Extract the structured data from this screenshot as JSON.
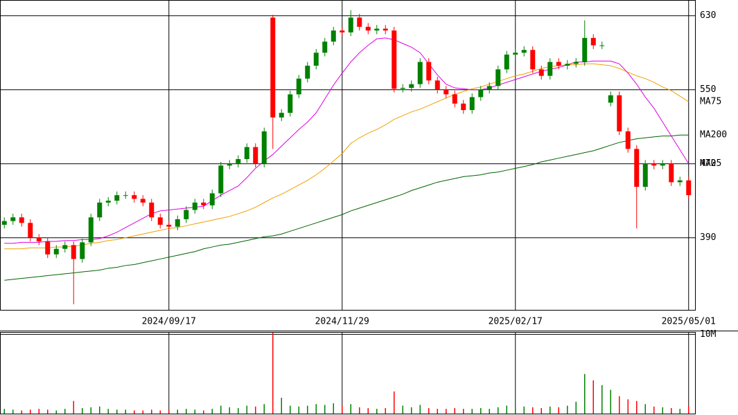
{
  "chart_data": {
    "type": "candlestick",
    "categories": [
      null,
      null,
      null,
      null,
      null,
      null,
      null,
      null,
      null,
      null,
      null,
      null,
      null,
      null,
      null,
      null,
      null,
      null,
      null,
      "2024/09/17",
      null,
      null,
      null,
      null,
      null,
      null,
      null,
      null,
      null,
      null,
      null,
      null,
      null,
      null,
      null,
      null,
      null,
      null,
      null,
      "2024/11/29",
      null,
      null,
      null,
      null,
      null,
      null,
      null,
      null,
      null,
      null,
      null,
      null,
      null,
      null,
      null,
      null,
      null,
      null,
      null,
      "2025/02/17",
      null,
      null,
      null,
      null,
      null,
      null,
      null,
      null,
      null,
      null,
      null,
      null,
      null,
      null,
      null,
      null,
      null,
      null,
      null,
      "2025/05/01"
    ],
    "open": [
      404,
      408,
      412,
      406,
      390,
      386,
      372,
      378,
      382,
      367,
      385,
      412,
      428,
      430,
      436,
      436,
      432,
      428,
      412,
      404,
      402,
      410,
      420,
      428,
      425,
      438,
      468,
      470,
      475,
      488,
      470,
      628,
      520,
      525,
      545,
      562,
      576,
      590,
      602,
      614,
      612,
      628,
      618,
      614,
      616,
      614,
      551,
      552,
      556,
      580,
      560,
      550,
      545,
      535,
      528,
      542,
      550,
      554,
      572,
      588,
      590,
      593,
      572,
      565,
      580,
      576,
      578,
      580,
      606,
      598,
      536,
      544,
      505,
      486,
      445,
      470,
      468,
      470,
      450,
      452
    ],
    "high": [
      412,
      416,
      416,
      410,
      394,
      390,
      382,
      386,
      386,
      389,
      416,
      432,
      434,
      440,
      440,
      440,
      436,
      432,
      416,
      408,
      414,
      424,
      432,
      432,
      442,
      472,
      474,
      479,
      492,
      492,
      509,
      631,
      529,
      549,
      566,
      580,
      594,
      606,
      618,
      618,
      636,
      632,
      622,
      620,
      620,
      618,
      556,
      560,
      584,
      584,
      564,
      554,
      549,
      539,
      546,
      554,
      558,
      576,
      592,
      594,
      597,
      597,
      576,
      584,
      584,
      582,
      584,
      625,
      610,
      602,
      548,
      548,
      509,
      490,
      474,
      474,
      474,
      474,
      456,
      456
    ],
    "low": [
      400,
      404,
      402,
      386,
      382,
      368,
      368,
      374,
      318,
      363,
      381,
      408,
      424,
      426,
      432,
      428,
      424,
      408,
      400,
      398,
      398,
      406,
      416,
      421,
      421,
      434,
      464,
      466,
      471,
      466,
      466,
      486,
      516,
      521,
      541,
      558,
      572,
      586,
      598,
      608,
      608,
      614,
      610,
      610,
      610,
      547,
      547,
      548,
      552,
      556,
      546,
      541,
      531,
      524,
      524,
      538,
      546,
      550,
      568,
      584,
      586,
      568,
      561,
      561,
      572,
      572,
      574,
      576,
      594,
      594,
      532,
      501,
      482,
      400,
      441,
      464,
      464,
      446,
      446,
      432
    ],
    "close": [
      408,
      412,
      406,
      390,
      386,
      372,
      378,
      382,
      367,
      385,
      412,
      428,
      430,
      436,
      436,
      432,
      428,
      412,
      404,
      402,
      410,
      420,
      428,
      425,
      438,
      468,
      470,
      475,
      488,
      470,
      505,
      520,
      525,
      545,
      562,
      576,
      590,
      602,
      614,
      612,
      628,
      618,
      614,
      616,
      614,
      551,
      552,
      556,
      580,
      560,
      550,
      545,
      535,
      528,
      542,
      550,
      554,
      572,
      588,
      590,
      593,
      572,
      565,
      580,
      576,
      578,
      580,
      606,
      598,
      598,
      544,
      505,
      486,
      445,
      470,
      468,
      470,
      450,
      452,
      436
    ],
    "up_color": "#008000",
    "down_color": "#ff0000",
    "ylim": [
      312,
      647
    ],
    "yticks": [
      390,
      470,
      550,
      630
    ],
    "grid": true,
    "moving_averages": [
      {
        "name": "MA75",
        "color": "#f0a000",
        "values": [
          378,
          378,
          378,
          379,
          379,
          379,
          380,
          380,
          381,
          382,
          384,
          385,
          387,
          388,
          390,
          392,
          394,
          396,
          398,
          400,
          401,
          403,
          405,
          407,
          409,
          411,
          413,
          416,
          419,
          423,
          428,
          433,
          437,
          442,
          447,
          452,
          458,
          465,
          473,
          481,
          492,
          498,
          503,
          507,
          512,
          518,
          522,
          526,
          529,
          533,
          537,
          541,
          545,
          548,
          551,
          553,
          556,
          559,
          562,
          565,
          567,
          570,
          573,
          575,
          576,
          577,
          577,
          578,
          578,
          577,
          576,
          573,
          569,
          565,
          562,
          558,
          553,
          549,
          543,
          537
        ]
      },
      {
        "name": "MA200",
        "color": "#006400",
        "values": [
          344,
          345,
          346,
          347,
          348,
          349,
          350,
          351,
          352,
          353,
          354,
          355,
          357,
          358,
          360,
          361,
          363,
          365,
          367,
          369,
          371,
          373,
          375,
          378,
          380,
          382,
          383,
          385,
          387,
          389,
          391,
          392,
          394,
          397,
          400,
          403,
          406,
          409,
          412,
          415,
          419,
          422,
          425,
          428,
          431,
          434,
          437,
          441,
          444,
          447,
          450,
          452,
          454,
          456,
          457,
          458,
          460,
          461,
          463,
          465,
          467,
          469,
          472,
          474,
          476,
          478,
          480,
          482,
          484,
          487,
          490,
          493,
          495,
          497,
          498,
          499,
          500,
          500,
          501,
          501
        ]
      },
      {
        "name": "MA25",
        "color": "#e000e0",
        "values": [
          384,
          384,
          385,
          385,
          385,
          386,
          386,
          387,
          387,
          388,
          388,
          389,
          392,
          396,
          401,
          406,
          411,
          416,
          419,
          420,
          421,
          422,
          423,
          424,
          430,
          436,
          441,
          446,
          455,
          465,
          473,
          480,
          489,
          498,
          507,
          515,
          525,
          540,
          555,
          568,
          580,
          590,
          598,
          605,
          606,
          604,
          600,
          596,
          590,
          578,
          566,
          556,
          552,
          551,
          550,
          550,
          552,
          555,
          558,
          561,
          564,
          567,
          570,
          572,
          574,
          577,
          580,
          580,
          581,
          581,
          581,
          578,
          568,
          556,
          542,
          530,
          515,
          500,
          485,
          470
        ]
      }
    ],
    "volume": {
      "values": [
        0.6,
        0.5,
        0.4,
        0.5,
        0.6,
        0.5,
        0.4,
        0.6,
        1.6,
        0.7,
        0.8,
        0.9,
        0.6,
        0.5,
        0.5,
        0.4,
        0.4,
        0.5,
        0.4,
        0.4,
        0.5,
        0.6,
        0.5,
        0.4,
        0.6,
        1.0,
        0.8,
        0.7,
        1.0,
        0.9,
        1.2,
        10.2,
        2.0,
        1.0,
        0.9,
        1.0,
        1.2,
        1.1,
        1.3,
        1.0,
        1.2,
        0.8,
        0.7,
        0.6,
        0.7,
        2.8,
        1.0,
        0.8,
        1.1,
        0.7,
        0.6,
        0.6,
        0.7,
        0.6,
        0.6,
        0.7,
        0.6,
        0.8,
        1.0,
        0.8,
        0.9,
        0.8,
        0.7,
        0.9,
        0.8,
        1.0,
        1.5,
        5.0,
        4.2,
        3.6,
        3.0,
        2.2,
        1.8,
        1.6,
        1.2,
        0.9,
        0.8,
        0.7,
        0.6,
        1.0
      ],
      "ylim": [
        0,
        10.3
      ],
      "yticks": [
        {
          "value": 10,
          "label": "10M"
        }
      ]
    }
  }
}
